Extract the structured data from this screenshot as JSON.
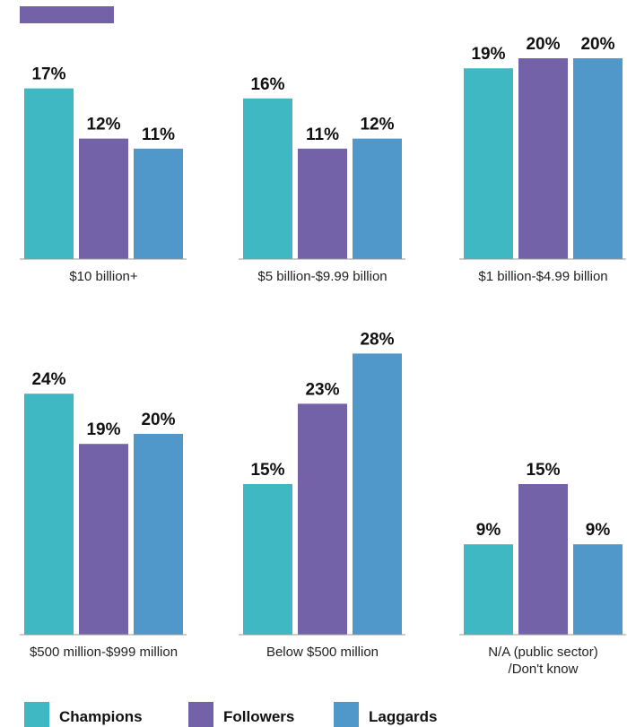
{
  "chart_data": {
    "type": "bar",
    "categories": [
      "$10 billion+",
      "$5 billion-$9.99 billion",
      "$1 billion-$4.99 billion",
      "$500 million-$999 million",
      "Below $500 million",
      "N/A (public sector)\n/Don't know"
    ],
    "series": [
      {
        "name": "Champions",
        "color": "#40b8c4",
        "values": [
          17,
          16,
          19,
          24,
          15,
          9
        ],
        "value_labels": [
          "17%",
          "16%",
          "19%",
          "24%",
          "15%",
          "9%"
        ]
      },
      {
        "name": "Followers",
        "color": "#7462a8",
        "values": [
          12,
          11,
          20,
          19,
          23,
          15
        ],
        "value_labels": [
          "12%",
          "11%",
          "20%",
          "19%",
          "23%",
          "15%"
        ]
      },
      {
        "name": "Laggards",
        "color": "#4f98c9",
        "values": [
          11,
          12,
          20,
          20,
          28,
          9
        ],
        "value_labels": [
          "11%",
          "12%",
          "20%",
          "20%",
          "28%",
          "9%"
        ]
      }
    ]
  }
}
